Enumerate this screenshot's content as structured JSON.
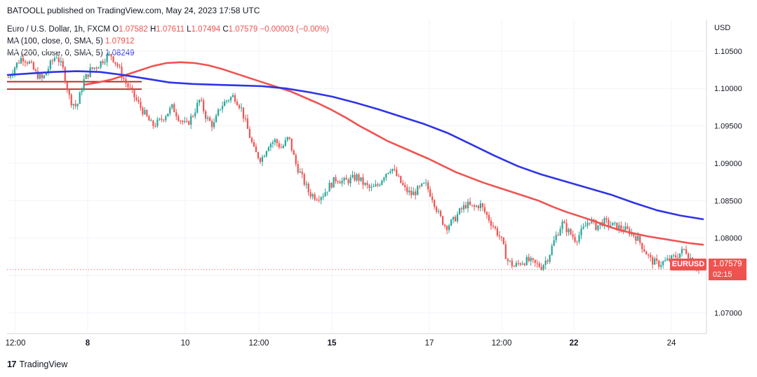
{
  "header": {
    "text": "BATOOLL published on TradingView.com, May 24, 2023 17:58 UTC"
  },
  "legend": {
    "symbol": "Euro / U.S. Dollar, 1h, FXCM",
    "o_label": "O",
    "o": "1.07582",
    "h_label": "H",
    "h": "1.07611",
    "l_label": "L",
    "l": "1.07494",
    "c_label": "C",
    "c": "1.07579",
    "change": "−0.00003 (−0.00%)",
    "ma100_label": "MA (100, close, 0, SMA, 5)",
    "ma100_value": "1.07912",
    "ma200_label": "MA (200, close, 0, SMA, 5)",
    "ma200_value": "1.08249"
  },
  "currency": "USD",
  "badge": {
    "symbol": "EURUSD",
    "price": "1.07579",
    "countdown": "02:15"
  },
  "footer": {
    "logo": "17",
    "brand": "TradingView"
  },
  "colors": {
    "up": "#26a69a",
    "down": "#ef5350",
    "ma100": "#ef5350",
    "ma200": "#2f34e8",
    "support": "#b22222"
  },
  "chart_data": {
    "type": "candlestick",
    "y_ticks": [
      1.105,
      1.1,
      1.095,
      1.09,
      1.085,
      1.08,
      1.075,
      1.07
    ],
    "y_tick_labels": [
      "1.10500",
      "1.10000",
      "1.09500",
      "1.09000",
      "1.08500",
      "1.08000",
      "1.07500",
      "1.07000"
    ],
    "ylim": [
      1.0676,
      1.1092
    ],
    "x_tick_labels": [
      "12:00",
      "8",
      "10",
      "12:00",
      "15",
      "17",
      "12:00",
      "22",
      "24"
    ],
    "x_tick_bold": [
      false,
      true,
      false,
      false,
      true,
      false,
      false,
      true,
      false
    ],
    "support_lines": [
      1.1009,
      1.0999
    ],
    "last_price": 1.07579,
    "price_path": [
      1.1015,
      1.103,
      1.1042,
      1.1035,
      1.102,
      1.1012,
      1.103,
      1.1045,
      1.1025,
      1.0985,
      1.0975,
      1.101,
      1.1025,
      1.103,
      1.104,
      1.1045,
      1.103,
      1.101,
      1.0995,
      1.098,
      1.0965,
      1.095,
      1.0955,
      1.0965,
      1.0975,
      1.096,
      1.095,
      1.0965,
      1.0985,
      1.096,
      1.095,
      1.0975,
      1.0985,
      1.099,
      1.0975,
      1.0945,
      1.0915,
      1.0905,
      1.0925,
      1.093,
      1.092,
      1.0935,
      1.09,
      1.088,
      1.086,
      1.0855,
      1.0858,
      1.087,
      1.088,
      1.0875,
      1.0878,
      1.0882,
      1.0872,
      1.0865,
      1.087,
      1.0885,
      1.0895,
      1.088,
      1.0865,
      1.0858,
      1.0865,
      1.0872,
      1.0855,
      1.083,
      1.0815,
      1.0822,
      1.0835,
      1.0845,
      1.084,
      1.0845,
      1.083,
      1.0815,
      1.08,
      1.077,
      1.0762,
      1.0768,
      1.077,
      1.0765,
      1.0762,
      1.0775,
      1.08,
      1.082,
      1.0808,
      1.0798,
      1.081,
      1.0825,
      1.0815,
      1.0822,
      1.0818,
      1.0815,
      1.0812,
      1.0808,
      1.08,
      1.0785,
      1.077,
      1.0765,
      1.0768,
      1.0772,
      1.0778,
      1.0785,
      1.077,
      1.07579
    ],
    "ma100_path": [
      1.1005,
      1.1008,
      1.1012,
      1.1018,
      1.1024,
      1.103,
      1.1034,
      1.1035,
      1.1034,
      1.1031,
      1.1026,
      1.102,
      1.1014,
      1.1008,
      1.1002,
      1.0996,
      1.0988,
      1.098,
      1.0971,
      1.0961,
      1.095,
      1.094,
      1.093,
      1.0922,
      1.0914,
      1.0906,
      1.0897,
      1.0888,
      1.0881,
      1.0874,
      1.0868,
      1.0862,
      1.0856,
      1.085,
      1.0842,
      1.0835,
      1.0829,
      1.0823,
      1.0816,
      1.081,
      1.0806,
      1.0802,
      1.0799,
      1.0796,
      1.0793,
      1.0791
    ],
    "ma200_path": [
      1.1018,
      1.102,
      1.1022,
      1.1023,
      1.1022,
      1.1018,
      1.1013,
      1.1008,
      1.1006,
      1.1005,
      1.1004,
      1.1003,
      1.1,
      1.0995,
      1.0989,
      1.0981,
      1.0972,
      1.0962,
      1.0952,
      1.094,
      1.0925,
      1.091,
      1.0896,
      1.0885,
      1.0876,
      1.0867,
      1.0858,
      1.0847,
      1.0837,
      1.083,
      1.0825
    ]
  }
}
